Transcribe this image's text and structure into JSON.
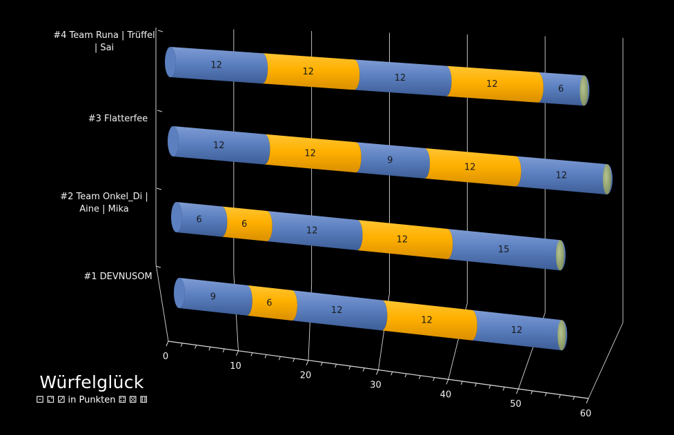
{
  "chart_data": {
    "type": "bar",
    "orientation": "horizontal-stacked-3d-cylinder",
    "title": "Würfelglück",
    "subtitle": "⚀ ⚁ ⚂ in Punkten ⚃ ⚄ ⚅",
    "categories": [
      "#1 DEVNUSOM",
      "#2 Team Onkel_Di | Aine | Mika",
      "#3 Flatterfee",
      "#4 Team Runa | Trüffel | Sai"
    ],
    "category_label_lines": [
      [
        "#1 DEVNUSOM"
      ],
      [
        "#2 Team Onkel_Di |",
        "Aine | Mika"
      ],
      [
        "#3 Flatterfee"
      ],
      [
        "#4 Team Runa | Trüffel",
        "| Sai"
      ]
    ],
    "series": [
      {
        "values": [
          9,
          6,
          12,
          12
        ]
      },
      {
        "values": [
          6,
          6,
          12,
          12
        ]
      },
      {
        "values": [
          12,
          12,
          9,
          12
        ]
      },
      {
        "values": [
          12,
          12,
          12,
          12
        ]
      },
      {
        "values": [
          12,
          15,
          12,
          6
        ]
      }
    ],
    "series_colors": [
      "#5b7fbf",
      "#ffb000",
      "#5b7fbf",
      "#ffb000",
      "#5b7fbf"
    ],
    "xlim": [
      0,
      60
    ],
    "x_ticks": [
      0,
      10,
      20,
      30,
      40,
      50,
      60
    ],
    "grid": true,
    "legend": "none"
  }
}
